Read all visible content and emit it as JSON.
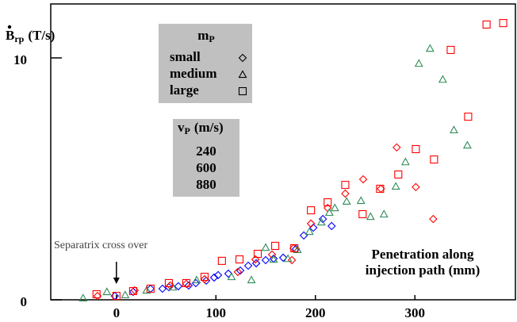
{
  "chart_data": {
    "type": "scatter",
    "y_label": {
      "symbol": "B",
      "subscript": "rp",
      "unit": "(T/s)"
    },
    "x_label": [
      "Penetration along",
      "injection path (mm)"
    ],
    "annotations": [
      {
        "text": "Separatrix cross over",
        "x": 0
      }
    ],
    "xlim": [
      -66,
      401
    ],
    "xticks": [
      0,
      100,
      200,
      300
    ],
    "ylim": [
      0,
      12.23
    ],
    "yticks": [
      0,
      10
    ],
    "shape_legend": {
      "title": {
        "symbol": "m",
        "subscript": "P"
      },
      "entries": [
        {
          "label": "small",
          "marker": "diamond"
        },
        {
          "label": "medium",
          "marker": "triangle"
        },
        {
          "label": "large",
          "marker": "square"
        }
      ]
    },
    "color_legend": {
      "title": {
        "symbol": "v",
        "subscript": "P",
        "unit": "(m/s)"
      },
      "entries": [
        {
          "label": "240",
          "color": "#0000ff"
        },
        {
          "label": "600",
          "color": "#2e8b57"
        },
        {
          "label": "880",
          "color": "#ff0000"
        }
      ]
    },
    "series": [
      {
        "marker": "diamond",
        "color": "#0000ff",
        "x": [
          -1.6,
          16.8,
          34.3,
          46.3,
          52.7,
          62.2,
          72.6,
          79.8,
          90.2,
          98.2,
          102.2,
          112.5,
          124.5,
          132.5,
          140.5,
          150,
          158,
          167.6,
          180.4,
          188.3,
          197.9,
          207.5,
          216.3
        ],
        "y": [
          0.16,
          0.33,
          0.46,
          0.46,
          0.52,
          0.56,
          0.59,
          0.69,
          0.79,
          0.92,
          1.02,
          1.08,
          1.21,
          1.41,
          1.51,
          1.64,
          1.7,
          1.74,
          2.1,
          2.66,
          2.98,
          3.34,
          3.05
        ]
      },
      {
        "marker": "diamond",
        "color": "#ff0000",
        "x": [
          -19,
          18.4,
          54,
          70.2,
          88.6,
          122,
          139.7,
          156.4,
          176.4,
          178,
          195.5,
          212.3,
          230,
          248,
          265.8,
          281.7,
          300.9,
          318.4
        ],
        "y": [
          0.16,
          0.39,
          0.59,
          0.66,
          0.85,
          1.15,
          1.67,
          1.87,
          1.64,
          2.13,
          3.15,
          3.8,
          4.39,
          4.98,
          4.59,
          6.3,
          4.66,
          3.34
        ]
      },
      {
        "marker": "triangle",
        "color": "#2e8b57",
        "x": [
          -33.5,
          -9.6,
          8.8,
          30.3,
          56.7,
          80.6,
          115.7,
          135.7,
          150,
          158,
          172.4,
          182,
          194,
          206,
          214,
          219.5,
          231.4,
          245.8,
          255.4,
          268.9,
          280.8,
          290.5,
          304,
          315.2,
          328,
          339.2,
          352.7
        ],
        "y": [
          0.07,
          0.33,
          0.2,
          0.39,
          0.52,
          0.82,
          0.95,
          0.82,
          2.16,
          1.67,
          1.7,
          2.07,
          2.82,
          3.21,
          3.61,
          3.8,
          4.07,
          4.1,
          3.44,
          3.54,
          4.69,
          5.7,
          9.77,
          10.39,
          9.11,
          7.02,
          6.39
        ]
      },
      {
        "marker": "square",
        "color": "#ff0000",
        "x": [
          -20,
          0,
          16.8,
          34.3,
          52.7,
          70.2,
          88.6,
          106,
          123.7,
          142,
          159.6,
          178.8,
          195.5,
          212.3,
          230,
          247.4,
          265,
          283.3,
          300.9,
          319.2,
          336,
          353.5,
          372,
          388.7
        ],
        "y": [
          0.23,
          0.16,
          0.36,
          0.46,
          0.69,
          0.69,
          0.95,
          1.61,
          1.67,
          1.9,
          2.23,
          2.13,
          3.7,
          4.03,
          4.75,
          3.54,
          4.59,
          5.18,
          6.23,
          5.8,
          10.33,
          7.57,
          11.38,
          11.44
        ]
      }
    ]
  }
}
